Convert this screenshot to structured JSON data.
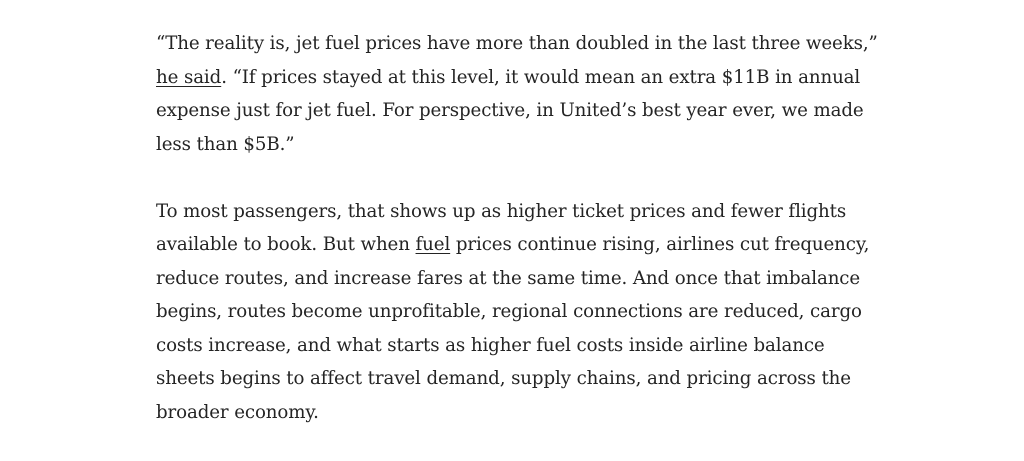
{
  "article": {
    "paragraph_1": {
      "before_link": "“The reality is, jet fuel prices have more than doubled in the last three weeks,” ",
      "link_text": "he said",
      "after_link": ". “If prices stayed at this level, it would mean an extra $11B in annual expense just for jet fuel. For perspective, in United’s best year ever, we made less than $5B.”"
    },
    "paragraph_2": {
      "before_link": "To most passengers, that shows up as higher ticket prices and fewer flights available to book. But when ",
      "link_text": "fuel",
      "after_link": " prices continue rising, airlines cut frequency, reduce routes, and increase fares at the same time. And once that imbalance begins, routes become unprofitable, regional connections are reduced, cargo costs increase, and what starts as higher fuel costs inside airline balance sheets begins to affect travel demand, supply chains, and pricing across the broader economy."
    }
  }
}
